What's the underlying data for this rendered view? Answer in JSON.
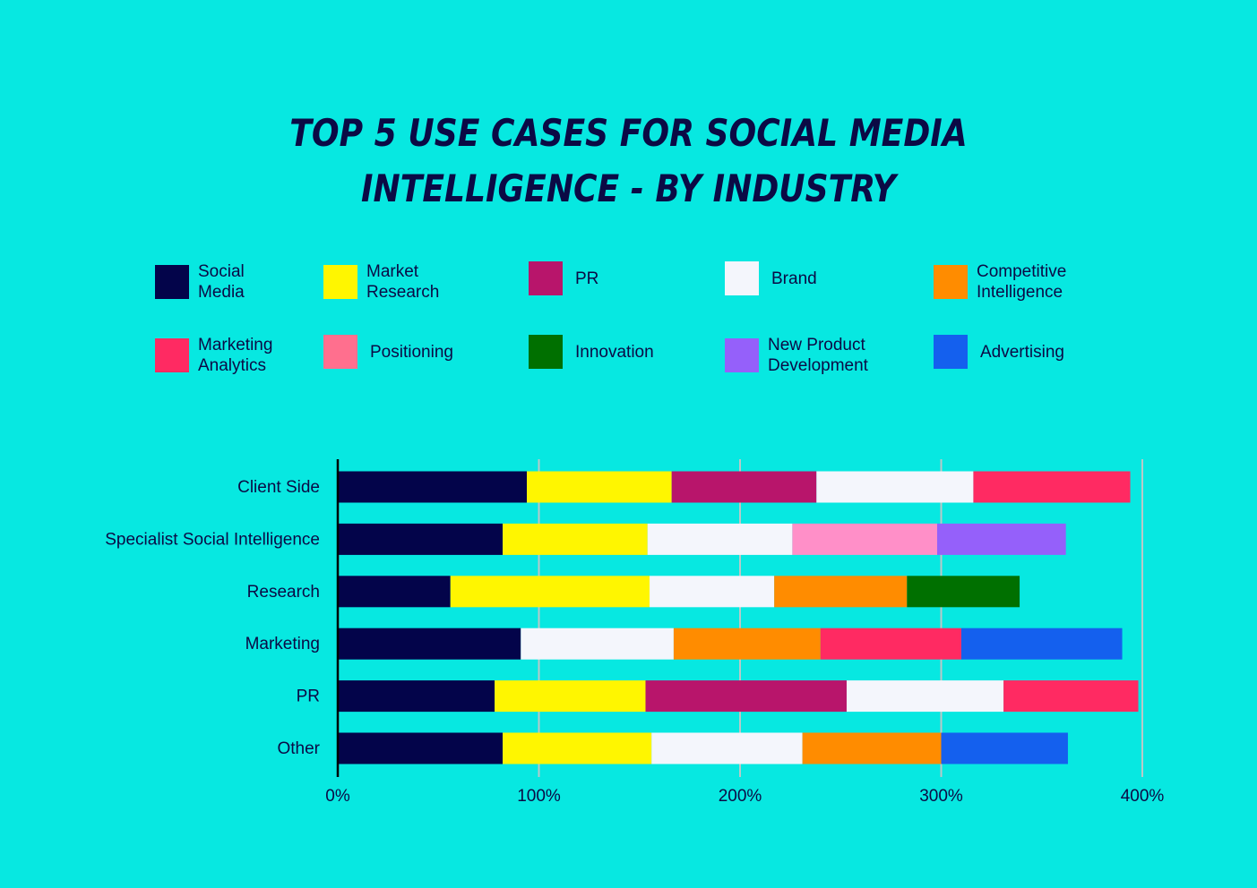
{
  "chart_data": {
    "type": "bar",
    "orientation": "horizontal",
    "stacked": true,
    "title_lines": [
      "Top 5 use cases for social media",
      "intelligence - by industry"
    ],
    "categories": [
      "Client Side",
      "Specialist Social Intelligence",
      "Research",
      "Marketing",
      "PR",
      "Other"
    ],
    "legend": [
      {
        "name": "Social\nMedia",
        "color": "#03044A"
      },
      {
        "name": "Market\nResearch",
        "color": "#FFF600"
      },
      {
        "name": "PR",
        "color": "#B8156B"
      },
      {
        "name": "Brand",
        "color": "#F4F6FC"
      },
      {
        "name": "Competitive\nIntelligence",
        "color": "#FF8C00"
      },
      {
        "name": "Marketing\nAnalytics",
        "color": "#FF2A62"
      },
      {
        "name": "Positioning",
        "color": "#FF6F8E"
      },
      {
        "name": "Innovation",
        "color": "#007000"
      },
      {
        "name": "New Product\nDevelopment",
        "color": "#9560FA"
      },
      {
        "name": "Advertising",
        "color": "#1460EE"
      }
    ],
    "bars": [
      [
        {
          "series": 0,
          "value": 94
        },
        {
          "series": 1,
          "value": 72
        },
        {
          "series": 2,
          "value": 72
        },
        {
          "series": 3,
          "value": 78
        },
        {
          "series": 5,
          "value": 78
        }
      ],
      [
        {
          "series": 0,
          "value": 82
        },
        {
          "series": 1,
          "value": 72
        },
        {
          "series": 3,
          "value": 72
        },
        {
          "series": 6,
          "color": "#FF8FC8",
          "value": 72
        },
        {
          "series": 8,
          "value": 64
        }
      ],
      [
        {
          "series": 0,
          "value": 56
        },
        {
          "series": 1,
          "value": 99
        },
        {
          "series": 3,
          "value": 62
        },
        {
          "series": 4,
          "value": 66
        },
        {
          "series": 7,
          "value": 56
        }
      ],
      [
        {
          "series": 0,
          "value": 91
        },
        {
          "series": 3,
          "value": 76
        },
        {
          "series": 4,
          "value": 73
        },
        {
          "series": 5,
          "value": 70
        },
        {
          "series": 9,
          "value": 80
        }
      ],
      [
        {
          "series": 0,
          "value": 78
        },
        {
          "series": 1,
          "value": 75
        },
        {
          "series": 2,
          "value": 100
        },
        {
          "series": 3,
          "value": 78
        },
        {
          "series": 5,
          "value": 67
        }
      ],
      [
        {
          "series": 0,
          "value": 82
        },
        {
          "series": 1,
          "value": 74
        },
        {
          "series": 3,
          "value": 75
        },
        {
          "series": 4,
          "value": 69
        },
        {
          "series": 9,
          "value": 63
        }
      ]
    ],
    "x_ticks": [
      "0%",
      "100%",
      "200%",
      "300%",
      "400%"
    ],
    "xlim": [
      0,
      400
    ],
    "grid": true,
    "legend_position": "top"
  }
}
